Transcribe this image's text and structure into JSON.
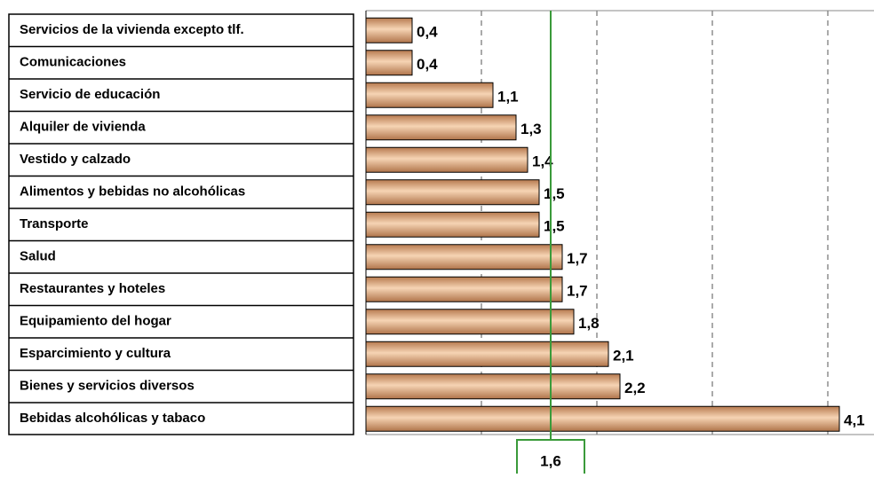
{
  "chart_data": {
    "type": "barh",
    "categories": [
      "Servicios de la vivienda excepto tlf.",
      "Comunicaciones",
      "Servicio de educación",
      "Alquiler de vivienda",
      "Vestido y calzado",
      "Alimentos y bebidas no alcohólicas",
      "Transporte",
      "Salud",
      "Restaurantes y hoteles",
      "Equipamiento del hogar",
      "Esparcimiento y cultura",
      "Bienes y servicios diversos",
      "Bebidas alcohólicas y tabaco"
    ],
    "values": [
      0.4,
      0.4,
      1.1,
      1.3,
      1.4,
      1.5,
      1.5,
      1.7,
      1.7,
      1.8,
      2.1,
      2.2,
      4.1
    ],
    "value_labels": [
      "0,4",
      "0,4",
      "1,1",
      "1,3",
      "1,4",
      "1,5",
      "1,5",
      "1,7",
      "1,7",
      "1,8",
      "2,1",
      "2,2",
      "4,1"
    ],
    "color": "#e8b48c",
    "xlim": [
      0,
      4.4
    ],
    "xticks": [
      1,
      2,
      3,
      4
    ],
    "grid": true,
    "reference": {
      "value": 1.6,
      "label": "1,6",
      "color": "#3a9a3a"
    }
  }
}
